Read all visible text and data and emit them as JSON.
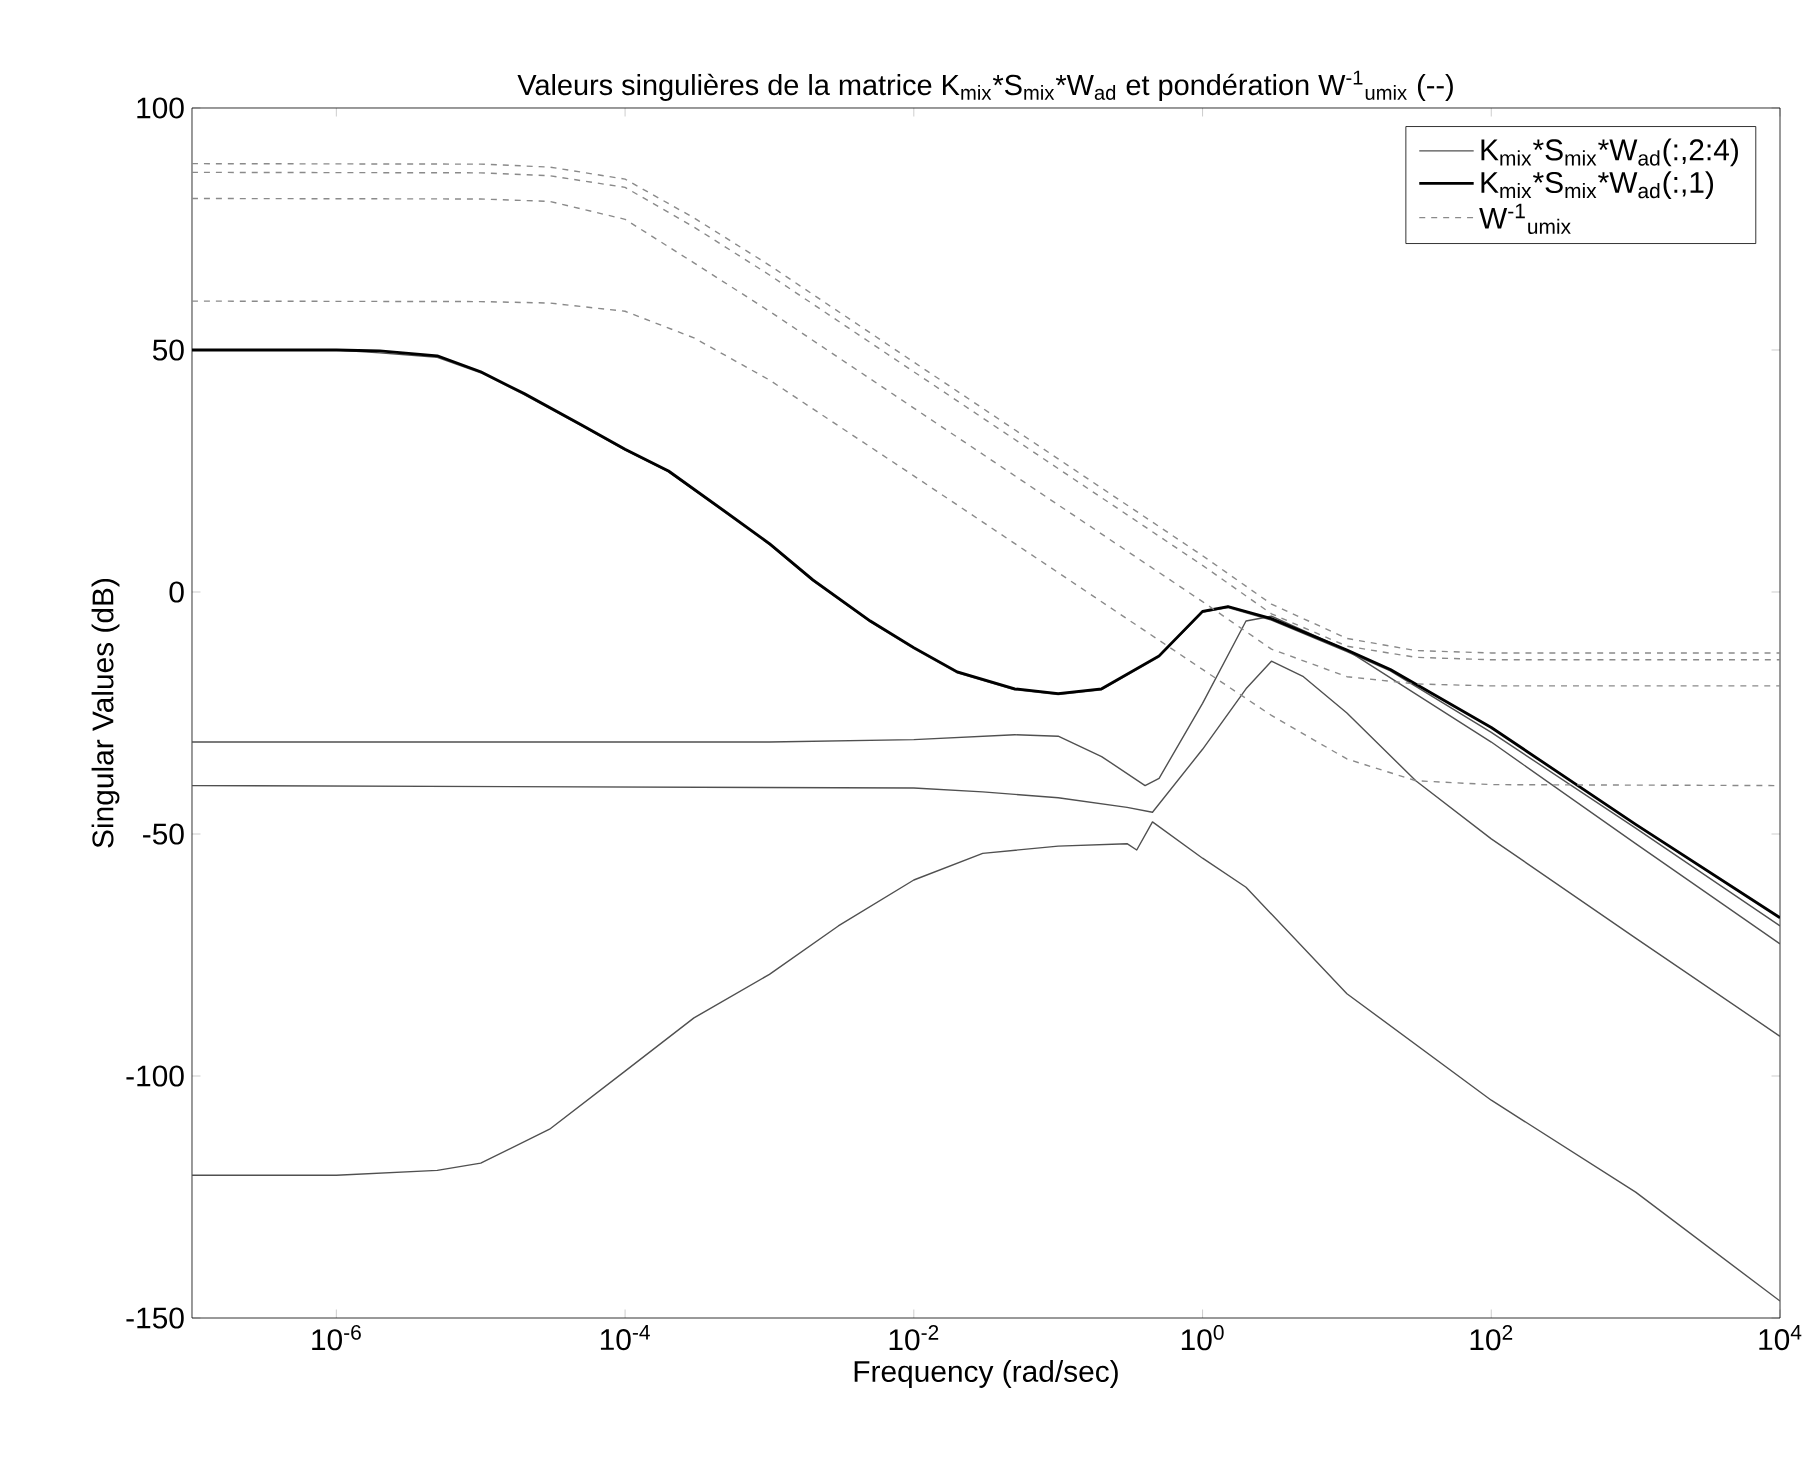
{
  "chart_data": {
    "type": "line",
    "title": "Valeurs singulières de la matrice K$_{mix}$*S$_{mix}$*W$_{ad}$ et pondération W$^{-1}$$_{umix}$ (--)",
    "xlabel": "Frequency (rad/sec)",
    "ylabel": "Singular Values (dB)",
    "log": "x",
    "xlim": [
      1e-07,
      10000
    ],
    "ylim": [
      -150,
      100
    ],
    "xticks": [
      {
        "value": 1e-06,
        "label": "10$^{-6}$"
      },
      {
        "value": 0.0001,
        "label": "10$^{-4}$"
      },
      {
        "value": 0.01,
        "label": "10$^{-2}$"
      },
      {
        "value": 1,
        "label": "10$^{0}$"
      },
      {
        "value": 100,
        "label": "10$^{2}$"
      },
      {
        "value": 10000,
        "label": "10$^{4}$"
      }
    ],
    "yticks": [
      -150,
      -100,
      -50,
      0,
      50,
      100
    ],
    "legend": "top right",
    "series": [
      {
        "name": "K$_{mix}$*S$_{mix}$*W$_{ad}$(:,2:4)",
        "color": "#505050",
        "line_style": "solid",
        "x": [
          1e-07,
          0.001,
          0.01,
          0.05,
          0.1,
          0.2,
          0.4,
          0.5,
          1,
          2,
          3,
          10,
          100,
          1000,
          10000
        ],
        "values": [
          -31,
          -31,
          -30.5,
          -29.5,
          -29.8,
          -34,
          -40,
          -38.5,
          -23,
          -6,
          -5,
          -12,
          -31,
          -52,
          -72.7
        ]
      },
      {
        "color": "#505050",
        "line_style": "solid",
        "x": [
          1e-07,
          0.01,
          0.03,
          0.1,
          0.3,
          0.45,
          1,
          2,
          3,
          5,
          10,
          30,
          100,
          1000,
          10000
        ],
        "values": [
          -40,
          -40.5,
          -41.3,
          -42.5,
          -44.5,
          -45.5,
          -32.5,
          -20,
          -14.3,
          -17.5,
          -25,
          -39,
          -51,
          -71.5,
          -91.8
        ]
      },
      {
        "color": "#505050",
        "line_style": "solid",
        "x": [
          1e-07,
          1e-06,
          5e-06,
          1e-05,
          3e-05,
          0.0001,
          0.0003,
          0.001,
          0.003,
          0.01,
          0.03,
          0.1,
          0.3,
          0.35,
          0.45,
          1,
          2,
          10,
          100,
          1000,
          10000
        ],
        "values": [
          -120.5,
          -120.5,
          -119.5,
          -118,
          -111,
          -99,
          -88,
          -79,
          -69,
          -59.5,
          -54,
          -52.5,
          -52,
          -53.3,
          -47.5,
          -55,
          -61,
          -83,
          -105,
          -124,
          -146.5
        ]
      },
      {
        "color": "#505050",
        "line_style": "solid",
        "x": [
          1e-07,
          1e-06,
          2e-06,
          5e-06,
          1e-05,
          2e-05,
          5e-05,
          0.0001,
          0.0002,
          0.0005,
          0.001,
          0.002,
          0.005,
          0.01,
          0.02,
          0.05,
          0.1,
          0.2,
          0.5,
          1,
          1.5,
          3,
          10,
          20,
          100,
          1000,
          10000
        ],
        "values": [
          50,
          50,
          49.4,
          48.5,
          45.3,
          40.8,
          34.3,
          29.3,
          24.8,
          16.3,
          9.8,
          2.3,
          -6.2,
          -11.7,
          -16.7,
          -20.2,
          -21.2,
          -20.2,
          -13.4,
          -4.2,
          -3.2,
          -5.8,
          -12.3,
          -16.3,
          -29,
          -48.8,
          -69
        ]
      },
      {
        "name": "K$_{mix}$*S$_{mix}$*W$_{ad}$(:,1)",
        "color": "#000000",
        "line_style": "solid",
        "x": [
          1e-07,
          1e-06,
          2e-06,
          5e-06,
          1e-05,
          2e-05,
          5e-05,
          0.0001,
          0.0002,
          0.0005,
          0.001,
          0.002,
          0.005,
          0.01,
          0.02,
          0.05,
          0.1,
          0.2,
          0.5,
          1,
          1.5,
          3,
          10,
          20,
          100,
          1000,
          10000
        ],
        "values": [
          50,
          50,
          49.8,
          48.8,
          45.5,
          41,
          34.5,
          29.5,
          25,
          16.5,
          10,
          2.5,
          -6,
          -11.5,
          -16.5,
          -20,
          -21,
          -20,
          -13.2,
          -4,
          -3,
          -5.5,
          -12,
          -16,
          -28,
          -48,
          -67.3
        ]
      },
      {
        "name": "W$^{-1}$$_{umix}$",
        "color": "#8a8a8a",
        "line_style": "dashed",
        "x": [
          1e-07,
          1e-05,
          3e-05,
          0.0001,
          0.0003,
          0.001,
          0.01,
          0.1,
          1,
          3,
          10,
          30,
          100,
          10000
        ],
        "values": [
          88.5,
          88.4,
          87.8,
          85.3,
          77.3,
          67.5,
          47.5,
          27.5,
          7.5,
          -2.5,
          -9.6,
          -12.1,
          -12.6,
          -12.6
        ]
      },
      {
        "color": "#8a8a8a",
        "line_style": "dashed",
        "x": [
          1e-07,
          1e-05,
          3e-05,
          0.0001,
          0.0003,
          0.001,
          0.01,
          0.1,
          1,
          3,
          10,
          30,
          100,
          10000
        ],
        "values": [
          86.7,
          86.6,
          86,
          83.6,
          75.4,
          65.5,
          45.5,
          25.5,
          5.5,
          -4.5,
          -11.2,
          -13.5,
          -14,
          -14
        ]
      },
      {
        "color": "#8a8a8a",
        "line_style": "dashed",
        "x": [
          1e-07,
          1e-05,
          3e-05,
          0.0001,
          0.0003,
          0.001,
          0.01,
          0.1,
          1,
          3,
          10,
          30,
          100,
          10000
        ],
        "values": [
          81.3,
          81.2,
          80.7,
          77,
          68,
          58,
          38,
          18,
          -2,
          -11.8,
          -17.5,
          -19,
          -19.4,
          -19.4
        ]
      },
      {
        "color": "#8a8a8a",
        "line_style": "dashed",
        "x": [
          1e-07,
          1e-05,
          3e-05,
          0.0001,
          0.0003,
          0.001,
          0.01,
          0.1,
          1,
          3,
          10,
          30,
          100,
          10000
        ],
        "values": [
          60.1,
          60,
          59.7,
          58,
          52.5,
          43.8,
          24,
          4,
          -16,
          -25.5,
          -34.5,
          -39,
          -39.8,
          -40
        ]
      }
    ]
  }
}
